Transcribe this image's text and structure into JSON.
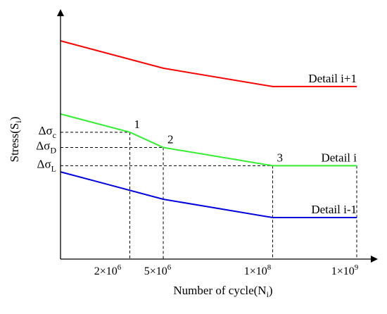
{
  "chart_data": {
    "type": "line",
    "title": "",
    "xlabel": {
      "main": "Number of cycle(N",
      "sub": "i",
      "close": ")"
    },
    "ylabel": {
      "main": "Stress(S",
      "sub": "i",
      "close": ")"
    },
    "x_scale": "log",
    "grid": false,
    "legend": "none",
    "x_ticks": [
      {
        "value": 2000000,
        "mantissa": "2×10",
        "exp": "6"
      },
      {
        "value": 5000000,
        "mantissa": "5×10",
        "exp": "6"
      },
      {
        "value": 100000000,
        "mantissa": "1×10",
        "exp": "8"
      },
      {
        "value": 1000000000,
        "mantissa": "1×10",
        "exp": "9"
      }
    ],
    "y_ticks": [
      {
        "value": 0.7,
        "main": "Δσ",
        "sub": "c"
      },
      {
        "value": 0.65,
        "main": "Δσ",
        "sub": "D"
      },
      {
        "value": 0.59,
        "main": "Δσ",
        "sub": "L"
      }
    ],
    "series": [
      {
        "name": "Detail i+1",
        "color": "#ff0000",
        "x": [
          300000,
          5000000,
          100000000,
          1000000000
        ],
        "y": [
          1.0,
          0.91,
          0.85,
          0.85
        ]
      },
      {
        "name": "Detail i",
        "color": "#33ee33",
        "x": [
          300000,
          2000000,
          5000000,
          100000000,
          1000000000
        ],
        "y": [
          0.76,
          0.7,
          0.65,
          0.59,
          0.59
        ]
      },
      {
        "name": "Detail i-1",
        "color": "#0000dd",
        "x": [
          300000,
          5000000,
          100000000,
          1000000000
        ],
        "y": [
          0.57,
          0.48,
          0.42,
          0.42
        ]
      }
    ],
    "points": [
      {
        "label": "1",
        "x": 2000000,
        "y": 0.7
      },
      {
        "label": "2",
        "x": 5000000,
        "y": 0.65
      },
      {
        "label": "3",
        "x": 100000000,
        "y": 0.59
      }
    ]
  }
}
